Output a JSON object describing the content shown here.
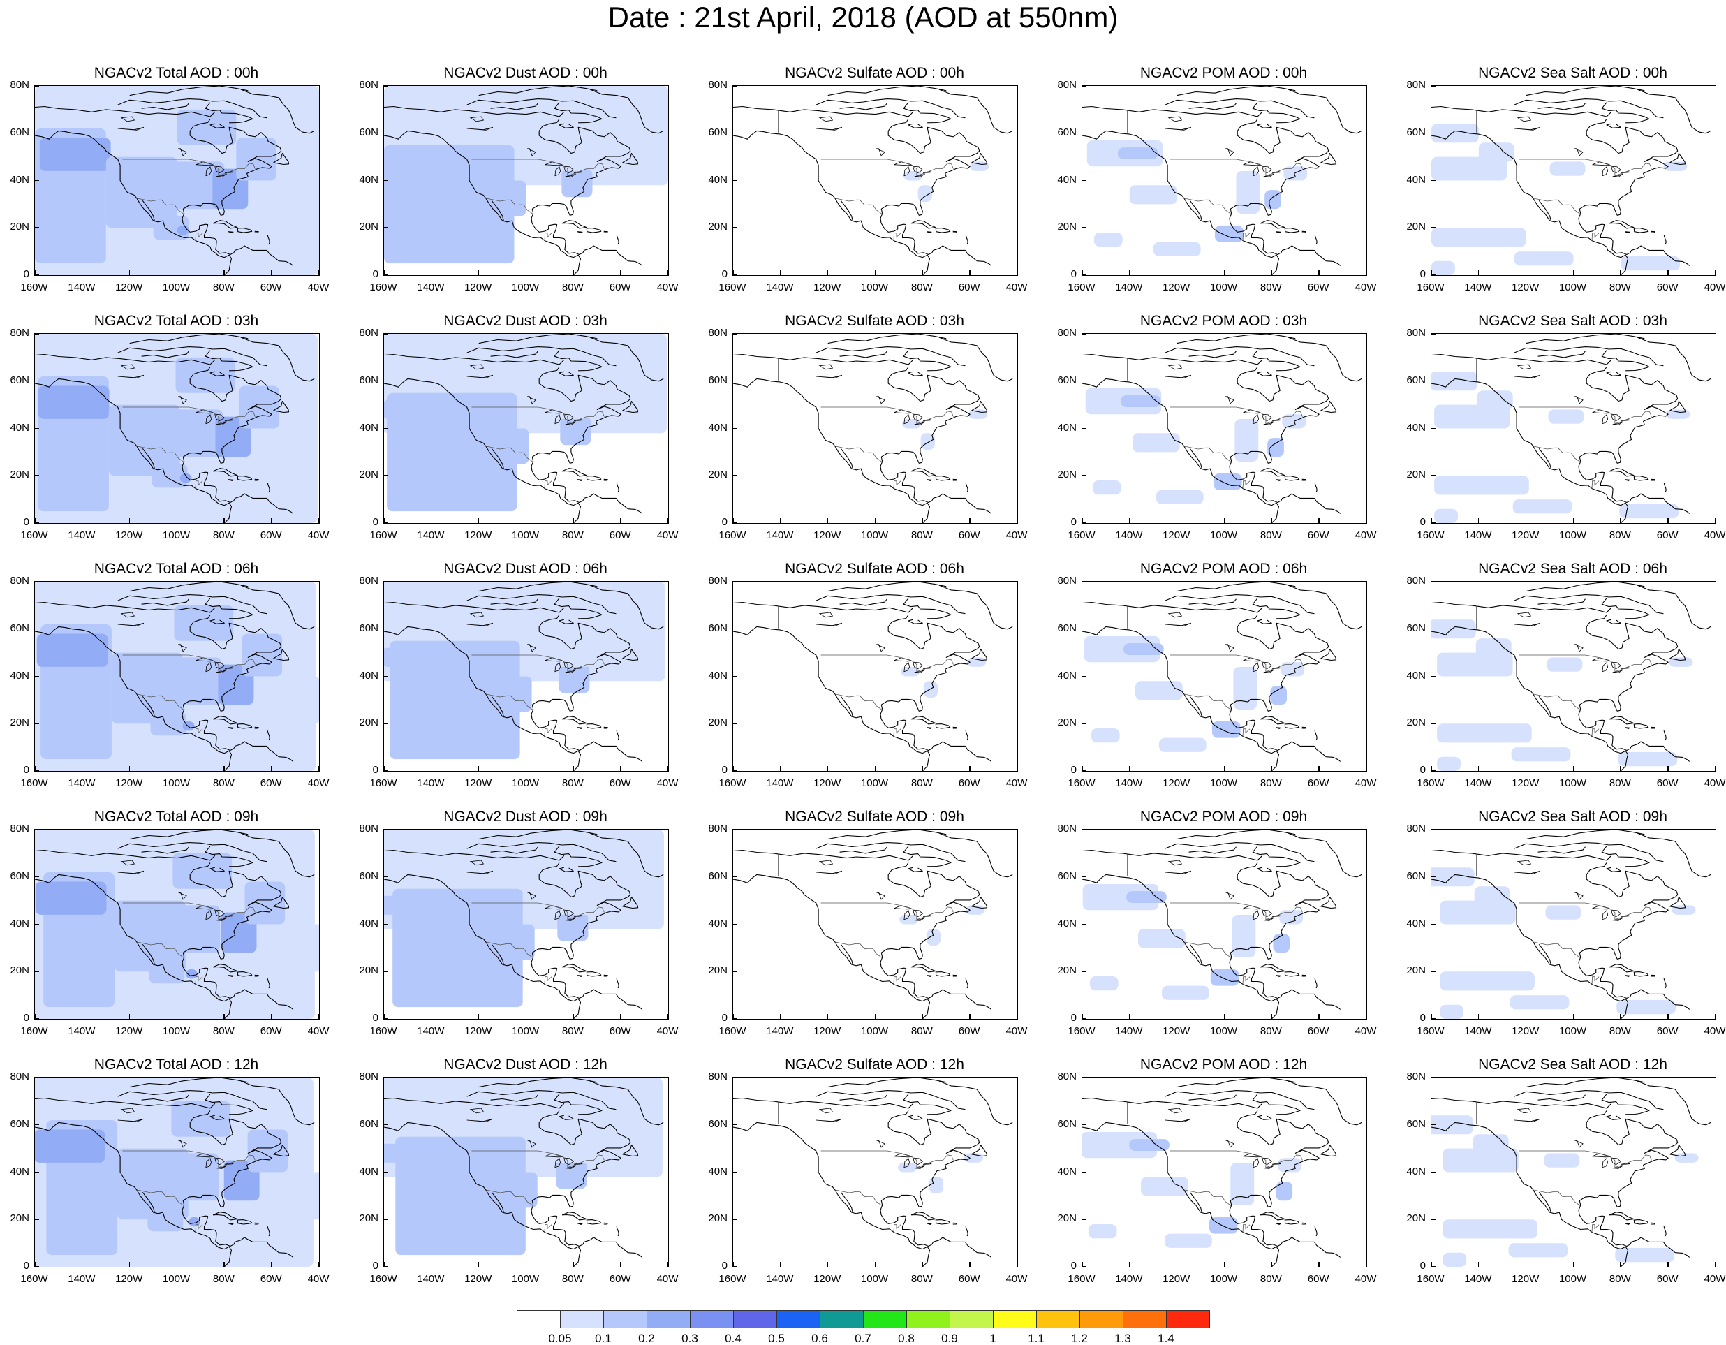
{
  "title": "Date : 21st April, 2018 (AOD at 550nm)",
  "lat_labels": [
    "80N",
    "60N",
    "40N",
    "20N",
    "0"
  ],
  "lon_labels": [
    "160W",
    "140W",
    "120W",
    "100W",
    "80W",
    "60W",
    "40W"
  ],
  "colors": {
    "land_line": "#000000",
    "low_aod": "#d6e2fd",
    "mid_aod": "#b5c8fb",
    "high_aod": "#93acf6"
  },
  "panels": [
    {
      "title": "NGACv2 Total AOD : 00h",
      "species": "total",
      "hour": 0
    },
    {
      "title": "NGACv2 Dust AOD : 00h",
      "species": "dust",
      "hour": 0
    },
    {
      "title": "NGACv2 Sulfate AOD : 00h",
      "species": "sulfate",
      "hour": 0
    },
    {
      "title": "NGACv2 POM AOD : 00h",
      "species": "pom",
      "hour": 0
    },
    {
      "title": "NGACv2 Sea Salt AOD : 00h",
      "species": "seasalt",
      "hour": 0
    },
    {
      "title": "NGACv2 Total AOD : 03h",
      "species": "total",
      "hour": 3
    },
    {
      "title": "NGACv2 Dust AOD : 03h",
      "species": "dust",
      "hour": 3
    },
    {
      "title": "NGACv2 Sulfate AOD : 03h",
      "species": "sulfate",
      "hour": 3
    },
    {
      "title": "NGACv2 POM AOD : 03h",
      "species": "pom",
      "hour": 3
    },
    {
      "title": "NGACv2 Sea Salt AOD : 03h",
      "species": "seasalt",
      "hour": 3
    },
    {
      "title": "NGACv2 Total AOD : 06h",
      "species": "total",
      "hour": 6
    },
    {
      "title": "NGACv2 Dust AOD : 06h",
      "species": "dust",
      "hour": 6
    },
    {
      "title": "NGACv2 Sulfate AOD : 06h",
      "species": "sulfate",
      "hour": 6
    },
    {
      "title": "NGACv2 POM AOD : 06h",
      "species": "pom",
      "hour": 6
    },
    {
      "title": "NGACv2 Sea Salt AOD : 06h",
      "species": "seasalt",
      "hour": 6
    },
    {
      "title": "NGACv2 Total AOD : 09h",
      "species": "total",
      "hour": 9
    },
    {
      "title": "NGACv2 Dust AOD : 09h",
      "species": "dust",
      "hour": 9
    },
    {
      "title": "NGACv2 Sulfate AOD : 09h",
      "species": "sulfate",
      "hour": 9
    },
    {
      "title": "NGACv2 POM AOD : 09h",
      "species": "pom",
      "hour": 9
    },
    {
      "title": "NGACv2 Sea Salt  AOD : 09h",
      "species": "seasalt",
      "hour": 9
    },
    {
      "title": "NGACv2 Total AOD  : 12h",
      "species": "total",
      "hour": 12
    },
    {
      "title": "NGACv2 Dust AOD : 12h",
      "species": "dust",
      "hour": 12
    },
    {
      "title": "NGACv2 Sulfate AOD : 12h",
      "species": "sulfate",
      "hour": 12
    },
    {
      "title": "NGACv2 POM  AOD : 12h",
      "species": "pom",
      "hour": 12
    },
    {
      "title": "NGACv2 Sea Salt  AOD : 12h",
      "species": "seasalt",
      "hour": 12
    }
  ],
  "colorbar": {
    "labels": [
      "0.05",
      "0.1",
      "0.2",
      "0.3",
      "0.4",
      "0.5",
      "0.6",
      "0.7",
      "0.8",
      "0.9",
      "1",
      "1.1",
      "1.2",
      "1.3",
      "1.4"
    ],
    "colors": [
      "#ffffff",
      "#d6e2fd",
      "#b5c8fb",
      "#93acf6",
      "#7a90f2",
      "#5f66ea",
      "#1a63f5",
      "#0f9a96",
      "#23e619",
      "#8ff21c",
      "#c3f54a",
      "#fffc19",
      "#ffc20d",
      "#ff9a0a",
      "#ff700a",
      "#ff2a0d"
    ]
  }
}
